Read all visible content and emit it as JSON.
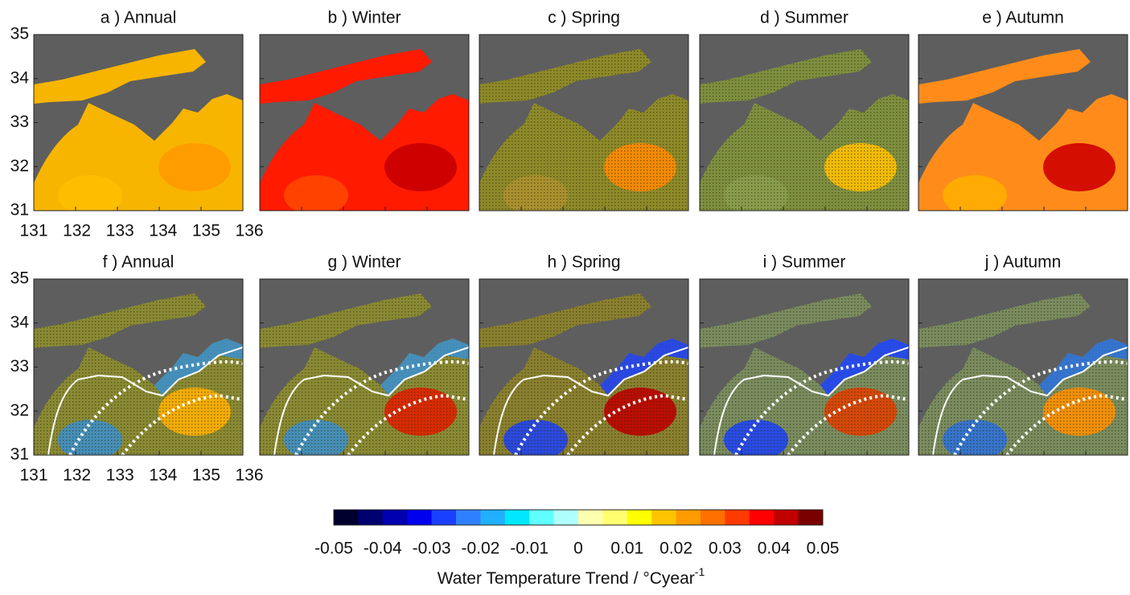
{
  "panels_top": [
    {
      "title": "a ) Annual"
    },
    {
      "title": "b ) Winter"
    },
    {
      "title": "c ) Spring"
    },
    {
      "title": "d ) Summer"
    },
    {
      "title": "e ) Autumn"
    }
  ],
  "panels_bottom": [
    {
      "title": "f ) Annual"
    },
    {
      "title": "g ) Winter"
    },
    {
      "title": "h ) Spring"
    },
    {
      "title": "i ) Summer"
    },
    {
      "title": "j ) Autumn"
    }
  ],
  "x_ticks": [
    131,
    132,
    133,
    134,
    135,
    136
  ],
  "y_ticks": [
    35,
    34,
    33,
    32,
    31
  ],
  "colorbar": {
    "colors": [
      "#00002e",
      "#000070",
      "#0000b0",
      "#0000ee",
      "#1a40ff",
      "#2f80ff",
      "#20b0ff",
      "#00e8ff",
      "#60ffff",
      "#b0ffff",
      "#ffffb0",
      "#ffff70",
      "#ffff00",
      "#ffc400",
      "#ff9a00",
      "#ff7000",
      "#ff3a00",
      "#ff0000",
      "#c00000",
      "#7a0000"
    ],
    "ticks": [
      -0.05,
      -0.04,
      -0.03,
      -0.02,
      -0.01,
      0,
      0.01,
      0.02,
      0.03,
      0.04,
      0.05
    ],
    "label": "Water Temperature Trend / °Cyear",
    "label_sup": "-1"
  }
}
